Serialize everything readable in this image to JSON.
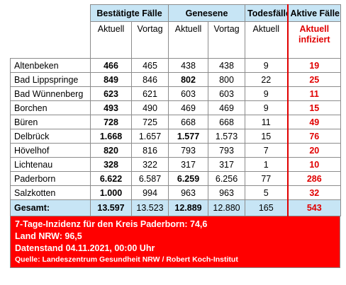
{
  "header": {
    "groups": [
      "Bestätigte Fälle",
      "Genesene",
      "Todesfälle",
      "Aktive Fälle"
    ],
    "sub": [
      "Aktuell",
      "Vortag",
      "Aktuell",
      "Vortag",
      "Aktuell",
      "Aktuell infiziert"
    ]
  },
  "rows": [
    {
      "name": "Altenbeken",
      "b_akt": "466",
      "b_vor": "465",
      "g_akt": "438",
      "g_vor": "438",
      "tod": "9",
      "aktiv": "19"
    },
    {
      "name": "Bad Lippspringe",
      "b_akt": "849",
      "b_vor": "846",
      "g_akt": "802",
      "g_vor": "800",
      "tod": "22",
      "aktiv": "25"
    },
    {
      "name": "Bad Wünnenberg",
      "b_akt": "623",
      "b_vor": "621",
      "g_akt": "603",
      "g_vor": "603",
      "tod": "9",
      "aktiv": "11"
    },
    {
      "name": "Borchen",
      "b_akt": "493",
      "b_vor": "490",
      "g_akt": "469",
      "g_vor": "469",
      "tod": "9",
      "aktiv": "15"
    },
    {
      "name": "Büren",
      "b_akt": "728",
      "b_vor": "725",
      "g_akt": "668",
      "g_vor": "668",
      "tod": "11",
      "aktiv": "49"
    },
    {
      "name": "Delbrück",
      "b_akt": "1.668",
      "b_vor": "1.657",
      "g_akt": "1.577",
      "g_vor": "1.573",
      "tod": "15",
      "aktiv": "76"
    },
    {
      "name": "Hövelhof",
      "b_akt": "820",
      "b_vor": "816",
      "g_akt": "793",
      "g_vor": "793",
      "tod": "7",
      "aktiv": "20"
    },
    {
      "name": "Lichtenau",
      "b_akt": "328",
      "b_vor": "322",
      "g_akt": "317",
      "g_vor": "317",
      "tod": "1",
      "aktiv": "10"
    },
    {
      "name": "Paderborn",
      "b_akt": "6.622",
      "b_vor": "6.587",
      "g_akt": "6.259",
      "g_vor": "6.256",
      "tod": "77",
      "aktiv": "286"
    },
    {
      "name": "Salzkotten",
      "b_akt": "1.000",
      "b_vor": "994",
      "g_akt": "963",
      "g_vor": "963",
      "tod": "5",
      "aktiv": "32"
    }
  ],
  "total": {
    "name": "Gesamt:",
    "b_akt": "13.597",
    "b_vor": "13.523",
    "g_akt": "12.889",
    "g_vor": "12.880",
    "tod": "165",
    "aktiv": "543"
  },
  "note": {
    "line1": "7-Tage-Inzidenz für den Kreis Paderborn: 74,6",
    "line2": "Land NRW: 96,5",
    "line3": "Datenstand 04.11.2021, 00:00 Uhr",
    "source": "Quelle: Landeszentrum Gesundheit NRW / Robert Koch-Institut"
  },
  "colors": {
    "header_bg": "#c7e5f5",
    "accent_red": "#e00000",
    "note_bg": "#ff0000"
  }
}
